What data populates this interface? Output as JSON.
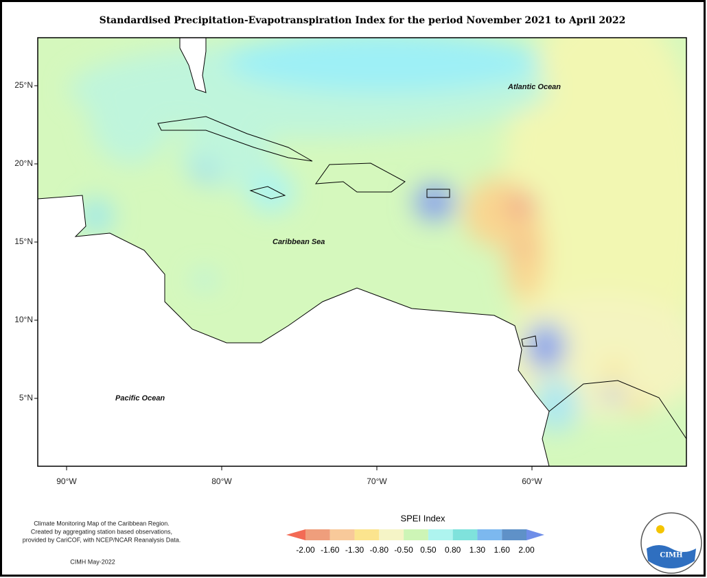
{
  "title": "Standardised Precipitation-Evapotranspiration Index for the period November 2021 to April 2022",
  "map": {
    "lat_ticks": [
      "25°N",
      "20°N",
      "15°N",
      "10°N",
      "5°N"
    ],
    "lon_ticks": [
      "90°W",
      "80°W",
      "70°W",
      "60°W"
    ],
    "labels": [
      "Atlantic Ocean",
      "Caribbean Sea",
      "Pacific Ocean"
    ]
  },
  "legend": {
    "title": "SPEI Index",
    "labels": [
      "-2.00",
      "-1.60",
      "-1.30",
      "-0.80",
      "-0.50",
      "0.50",
      "0.80",
      "1.30",
      "1.60",
      "2.00"
    ],
    "colors": [
      "#f36b55",
      "#ef9e7c",
      "#f8c99a",
      "#fbe48e",
      "#f5f4c6",
      "#cdf5b6",
      "#aef4ef",
      "#7fe2dc",
      "#7cb8ef",
      "#5f91c8",
      "#6f8ee8"
    ]
  },
  "footer": {
    "note": [
      "Climate Monitoring Map of the Caribbean Region.",
      "Created by aggregating station based observations,",
      "provided by CariCOF, with NCEP/NCAR Reanalysis Data."
    ],
    "credit": "CIMH May-2022",
    "logo": "CIMH"
  }
}
